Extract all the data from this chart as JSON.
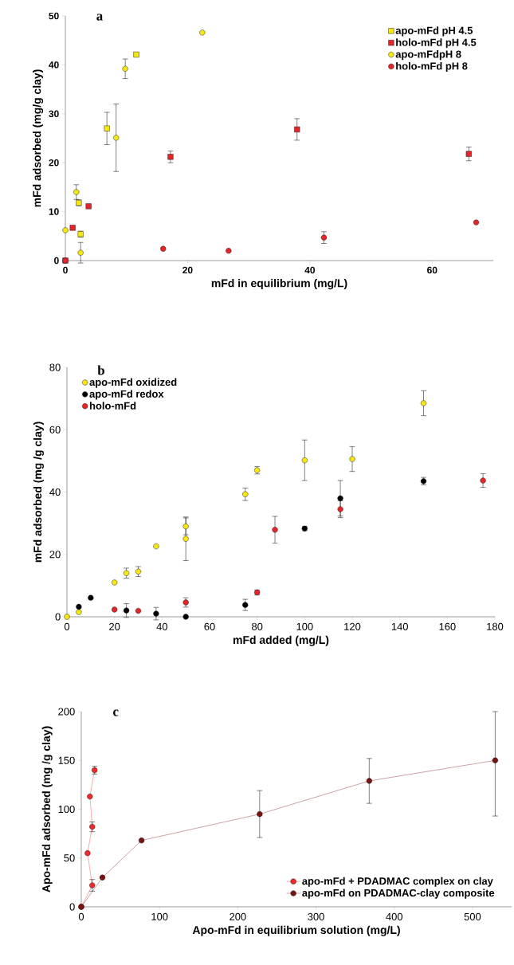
{
  "chart_data": [
    {
      "type": "scatter",
      "title": "a",
      "xlabel": "mFd in equilibrium (mg/L)",
      "ylabel": "mFd adsorbed (mg/g clay)",
      "xlim": [
        0,
        70
      ],
      "ylim": [
        0,
        50
      ],
      "xticks": [
        0,
        20,
        40,
        60
      ],
      "yticks": [
        0,
        10,
        20,
        30,
        40,
        50
      ],
      "legend": "top right",
      "series": [
        {
          "name": "apo-mFd pH 4.5",
          "color": "#f5e614",
          "marker": "square",
          "x": [
            2.2,
            2.5,
            6.8,
            11.6
          ],
          "values": [
            11.8,
            5.4,
            27.0,
            42.1
          ],
          "errors": [
            0.6,
            0.6,
            3.3,
            null
          ]
        },
        {
          "name": "holo-mFd pH 4.5",
          "color": "#e3262a",
          "marker": "square",
          "x": [
            0,
            1.2,
            3.8,
            17.2,
            37.9,
            66
          ],
          "values": [
            0,
            6.7,
            11.1,
            21.2,
            26.8,
            21.8
          ],
          "errors": [
            null,
            null,
            null,
            1.2,
            2.2,
            1.4
          ]
        },
        {
          "name": "apo-mFdpH 8",
          "color": "#f5e614",
          "marker": "circle",
          "x": [
            0,
            1.8,
            2.5,
            8.3,
            9.8,
            22.4
          ],
          "values": [
            6.2,
            14.0,
            1.6,
            25.1,
            39.2,
            46.6
          ],
          "errors": [
            null,
            1.5,
            2.1,
            6.9,
            2.0,
            null
          ]
        },
        {
          "name": "holo-mFd pH 8",
          "color": "#e3262a",
          "marker": "circle",
          "x": [
            0,
            16,
            26.7,
            42.3,
            67.2
          ],
          "values": [
            0,
            2.4,
            2.0,
            4.7,
            7.8
          ],
          "errors": [
            null,
            null,
            null,
            1.2,
            null
          ]
        }
      ]
    },
    {
      "type": "scatter",
      "title": "b",
      "xlabel": "mFd added (mg/L)",
      "ylabel": "mFd adsorbed (mg /g clay)",
      "xlim": [
        0,
        180
      ],
      "ylim": [
        0,
        80
      ],
      "xticks": [
        0,
        20,
        40,
        60,
        80,
        100,
        120,
        140,
        160,
        180
      ],
      "yticks": [
        0,
        20,
        40,
        60,
        80
      ],
      "legend": "top left",
      "series": [
        {
          "name": "apo-mFd oxidized",
          "color": "#f5e614",
          "marker": "circle",
          "x": [
            0,
            5,
            20,
            25,
            30,
            37.5,
            50,
            50,
            75,
            80,
            100,
            120,
            150
          ],
          "values": [
            0,
            1.5,
            11.0,
            14.0,
            14.5,
            22.6,
            29.0,
            25.0,
            39.3,
            47.0,
            50.2,
            50.6,
            68.5
          ],
          "errors": [
            null,
            null,
            null,
            1.6,
            1.6,
            null,
            2.7,
            7.0,
            2.0,
            1.2,
            6.5,
            4.0,
            4.0
          ]
        },
        {
          "name": "apo-mFd redox",
          "color": "#000000",
          "marker": "circle",
          "x": [
            5,
            10,
            25,
            37.5,
            50,
            75,
            100,
            115,
            150
          ],
          "values": [
            3.2,
            6.1,
            2.0,
            1.0,
            0,
            3.8,
            28.3,
            38.0,
            43.5
          ],
          "errors": [
            null,
            null,
            2.2,
            2.0,
            null,
            1.8,
            0.7,
            5.7,
            1.2
          ]
        },
        {
          "name": "holo-mFd",
          "color": "#e3262a",
          "marker": "circle",
          "x": [
            20,
            30,
            50,
            80,
            87.5,
            115,
            175
          ],
          "values": [
            2.3,
            1.9,
            4.6,
            7.8,
            27.9,
            34.5,
            43.7
          ],
          "errors": [
            null,
            null,
            1.5,
            0.8,
            4.3,
            2.7,
            2.2
          ]
        }
      ]
    },
    {
      "type": "line",
      "title": "c",
      "xlabel": "Apo-mFd in equilibrium solution (mg/L)",
      "ylabel": "Apo-mFd adsorbed (mg /g clay)",
      "xlim": [
        0,
        550
      ],
      "ylim": [
        0,
        200
      ],
      "xticks": [
        0,
        100,
        200,
        300,
        400,
        500
      ],
      "yticks": [
        0,
        50,
        100,
        150,
        200
      ],
      "legend": "bottom right",
      "marker": "circle",
      "series": [
        {
          "name": "apo-mFd + PDADMAC complex on clay",
          "color": "#ee2a2a",
          "x": [
            0,
            14,
            8,
            14,
            11,
            17
          ],
          "values": [
            0,
            22,
            55,
            82,
            113,
            140
          ],
          "errors": [
            null,
            6,
            null,
            5,
            null,
            4
          ]
        },
        {
          "name": "apo-mFd on PDADMAC-clay composite",
          "color": "#7a1414",
          "x": [
            0,
            27,
            77,
            228,
            368,
            529
          ],
          "values": [
            0,
            30,
            68,
            95,
            129,
            150
          ],
          "errors": [
            null,
            null,
            null,
            24,
            23,
            [
              93,
              200
            ]
          ]
        }
      ]
    }
  ]
}
